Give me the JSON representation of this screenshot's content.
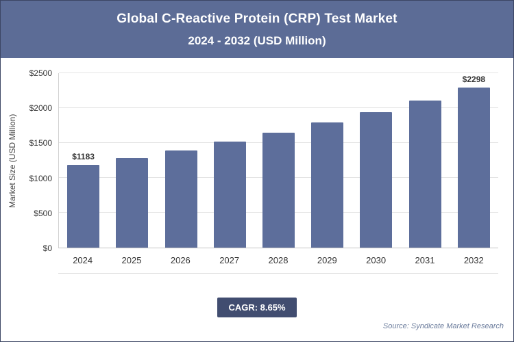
{
  "header": {
    "title": "Global C-Reactive Protein (CRP) Test Market",
    "subtitle": "2024 - 2032 (USD Million)"
  },
  "chart_data": {
    "type": "bar",
    "title": "Global C-Reactive Protein (CRP) Test Market 2024 - 2032 (USD Million)",
    "categories": [
      "2024",
      "2025",
      "2026",
      "2027",
      "2028",
      "2029",
      "2030",
      "2031",
      "2032"
    ],
    "values": [
      1183,
      1285,
      1395,
      1515,
      1650,
      1790,
      1945,
      2110,
      2298
    ],
    "bar_labels": [
      "$1183",
      "",
      "",
      "",
      "",
      "",
      "",
      "",
      "$2298"
    ],
    "xlabel": "",
    "ylabel": "Market Size (USD Million)",
    "ylim": [
      0,
      2500
    ],
    "yticks": [
      0,
      500,
      1000,
      1500,
      2000,
      2500
    ],
    "ytick_labels": [
      "$0",
      "$500",
      "$1000",
      "$1500",
      "$2000",
      "$2500"
    ],
    "bar_color": "#5d6e9b",
    "grid": true,
    "legend": false
  },
  "footer": {
    "cagr_label": "CAGR: 8.65%",
    "source": "Source: Syndicate Market Research"
  },
  "colors": {
    "header_bg": "#5c6c96",
    "bar": "#5d6e9b",
    "badge_bg": "#414d70"
  }
}
